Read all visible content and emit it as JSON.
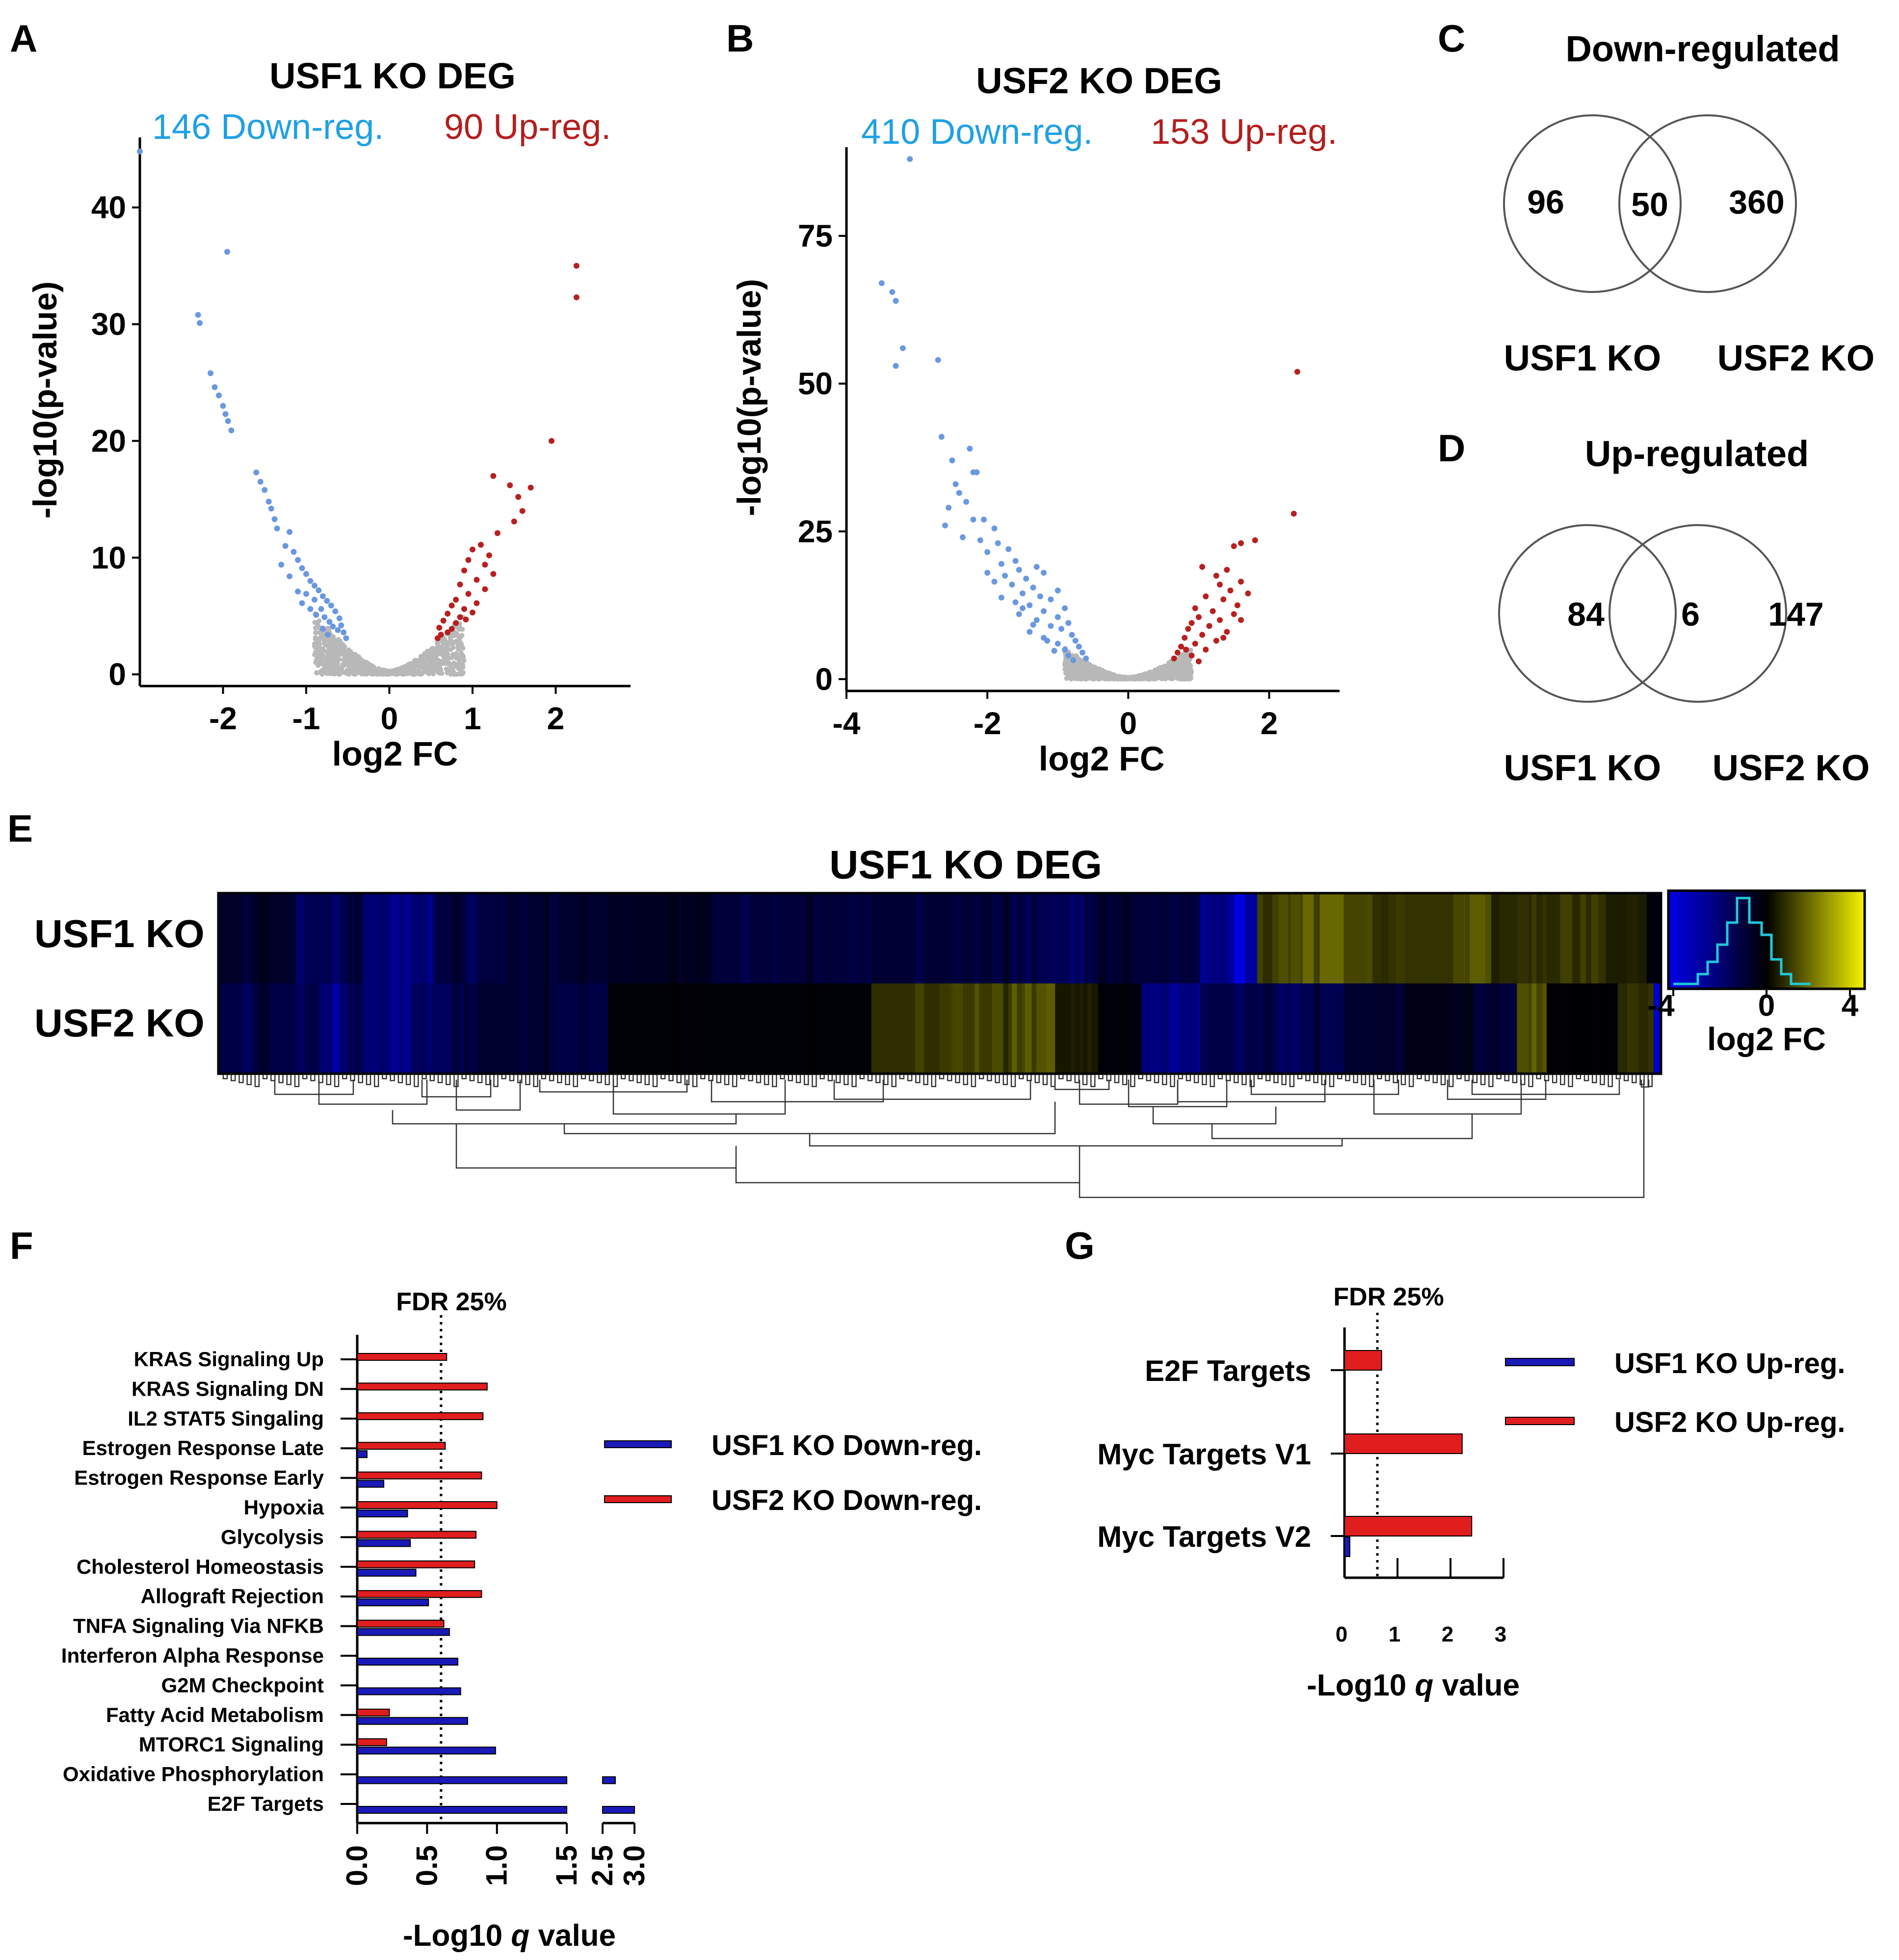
{
  "colors": {
    "down": "#1ea0e6",
    "up": "#b41e1e",
    "down_point": "#6a98e0",
    "up_point": "#b82020",
    "ns_point": "#b8b8b8",
    "usf1_bar": "#1a1ab8",
    "usf2_bar": "#e01e1e",
    "heat_low": "#0000e0",
    "heat_mid": "#000000",
    "heat_high": "#f0f000"
  },
  "panels": {
    "A": {
      "letter": "A",
      "title": "USF1 KO DEG",
      "down_label": "146 Down-reg.",
      "up_label": "90 Up-reg."
    },
    "B": {
      "letter": "B",
      "title": "USF2 KO DEG",
      "down_label": "410 Down-reg.",
      "up_label": "153 Up-reg."
    },
    "C": {
      "letter": "C",
      "title": "Down-regulated",
      "left_only": "96",
      "overlap": "50",
      "right_only": "360",
      "left_label": "USF1 KO",
      "right_label": "USF2 KO"
    },
    "D": {
      "letter": "D",
      "title": "Up-regulated",
      "left_only": "84",
      "overlap": "6",
      "right_only": "147",
      "left_label": "USF1 KO",
      "right_label": "USF2 KO"
    },
    "E": {
      "letter": "E",
      "title": "USF1 KO DEG",
      "rows": [
        "USF1 KO",
        "USF2 KO"
      ],
      "colorbar_label": "log2 FC",
      "colorbar_ticks": [
        "-4",
        "0",
        "4"
      ]
    },
    "F": {
      "letter": "F",
      "fdr_label": "FDR 25%"
    },
    "G": {
      "letter": "G",
      "fdr_label": "FDR 25%"
    }
  },
  "chart_data": [
    {
      "id": "A",
      "type": "scatter",
      "title": "USF1 KO DEG",
      "xlabel": "log2 FC",
      "ylabel": "-log10(p-value)",
      "xlim": [
        -3,
        2.9
      ],
      "ylim": [
        -1,
        46
      ],
      "xticks": [
        -2,
        -1,
        0,
        1,
        2
      ],
      "yticks": [
        0,
        10,
        20,
        30,
        40
      ],
      "series": [
        {
          "name": "146 Down-reg.",
          "points": [
            [
              -3.0,
              44.8
            ],
            [
              -1.95,
              36.2
            ],
            [
              -2.3,
              30.8
            ],
            [
              -2.28,
              30.1
            ],
            [
              -2.15,
              25.8
            ],
            [
              -2.1,
              24.6
            ],
            [
              -2.05,
              23.9
            ],
            [
              -2.0,
              23.0
            ],
            [
              -1.97,
              22.3
            ],
            [
              -1.94,
              21.7
            ],
            [
              -1.9,
              20.9
            ],
            [
              -1.6,
              17.3
            ],
            [
              -1.55,
              16.5
            ],
            [
              -1.5,
              15.8
            ],
            [
              -1.45,
              14.8
            ],
            [
              -1.42,
              14.2
            ],
            [
              -1.38,
              13.3
            ],
            [
              -1.35,
              12.5
            ],
            [
              -1.2,
              12.2
            ],
            [
              -1.25,
              11.0
            ],
            [
              -1.15,
              10.5
            ],
            [
              -1.1,
              9.8
            ],
            [
              -1.05,
              9.1
            ],
            [
              -1.0,
              8.6
            ],
            [
              -0.95,
              8.0
            ],
            [
              -0.9,
              7.6
            ],
            [
              -0.85,
              7.2
            ],
            [
              -0.8,
              6.7
            ],
            [
              -0.75,
              6.3
            ],
            [
              -0.7,
              5.9
            ],
            [
              -0.65,
              5.4
            ],
            [
              -0.6,
              4.8
            ],
            [
              -0.58,
              4.2
            ],
            [
              -0.55,
              3.6
            ],
            [
              -0.52,
              3.1
            ],
            [
              -1.1,
              7.1
            ],
            [
              -1.0,
              6.9
            ],
            [
              -0.9,
              6.4
            ],
            [
              -0.82,
              5.6
            ],
            [
              -0.78,
              4.9
            ],
            [
              -0.72,
              4.5
            ],
            [
              -0.68,
              4.1
            ],
            [
              -0.62,
              3.8
            ],
            [
              -1.3,
              9.4
            ],
            [
              -1.2,
              8.4
            ],
            [
              -0.95,
              5.6
            ],
            [
              -0.88,
              5.1
            ],
            [
              -0.8,
              3.9
            ],
            [
              -1.05,
              6.1
            ],
            [
              -0.74,
              3.4
            ]
          ]
        },
        {
          "name": "90 Up-reg.",
          "points": [
            [
              2.25,
              35.0
            ],
            [
              2.25,
              32.3
            ],
            [
              1.95,
              20.0
            ],
            [
              1.25,
              17.0
            ],
            [
              1.45,
              16.2
            ],
            [
              1.7,
              16.0
            ],
            [
              1.55,
              15.2
            ],
            [
              1.6,
              14.0
            ],
            [
              1.5,
              13.1
            ],
            [
              1.3,
              12.1
            ],
            [
              1.1,
              11.1
            ],
            [
              1.0,
              10.7
            ],
            [
              1.2,
              10.2
            ],
            [
              0.95,
              9.8
            ],
            [
              1.15,
              9.4
            ],
            [
              0.9,
              8.9
            ],
            [
              1.05,
              8.1
            ],
            [
              0.85,
              7.7
            ],
            [
              1.25,
              8.6
            ],
            [
              1.15,
              7.3
            ],
            [
              0.95,
              6.9
            ],
            [
              0.8,
              6.4
            ],
            [
              1.05,
              6.1
            ],
            [
              0.75,
              5.9
            ],
            [
              0.9,
              5.6
            ],
            [
              0.7,
              5.2
            ],
            [
              0.85,
              4.9
            ],
            [
              0.65,
              4.6
            ],
            [
              0.8,
              4.4
            ],
            [
              0.6,
              4.0
            ],
            [
              0.75,
              3.9
            ],
            [
              0.62,
              3.4
            ],
            [
              1.0,
              5.3
            ],
            [
              0.92,
              4.7
            ],
            [
              0.7,
              3.6
            ],
            [
              0.58,
              3.1
            ]
          ]
        }
      ]
    },
    {
      "id": "B",
      "type": "scatter",
      "title": "USF2 KO DEG",
      "xlabel": "log2 FC",
      "ylabel": "-log10(p-value)",
      "xlim": [
        -4,
        3
      ],
      "ylim": [
        -2,
        90
      ],
      "xticks": [
        -4,
        -2,
        0,
        2
      ],
      "yticks": [
        0,
        25,
        50,
        75
      ],
      "series": [
        {
          "name": "410 Down-reg.",
          "points": [
            [
              -3.1,
              88.0
            ],
            [
              -3.5,
              67.0
            ],
            [
              -3.35,
              65.5
            ],
            [
              -3.3,
              64.0
            ],
            [
              -3.2,
              56.0
            ],
            [
              -2.7,
              54.0
            ],
            [
              -3.3,
              53.0
            ],
            [
              -2.65,
              41.0
            ],
            [
              -2.5,
              37.0
            ],
            [
              -2.45,
              33.0
            ],
            [
              -2.4,
              31.5
            ],
            [
              -2.25,
              39.0
            ],
            [
              -2.2,
              35.0
            ],
            [
              -2.15,
              35.0
            ],
            [
              -2.55,
              29.0
            ],
            [
              -2.6,
              26.0
            ],
            [
              -2.3,
              30.0
            ],
            [
              -2.2,
              27.0
            ],
            [
              -2.05,
              27.0
            ],
            [
              -1.9,
              25.5
            ],
            [
              -2.35,
              24.0
            ],
            [
              -2.1,
              23.5
            ],
            [
              -1.85,
              23.0
            ],
            [
              -2.0,
              21.5
            ],
            [
              -1.7,
              22.0
            ],
            [
              -1.6,
              20.0
            ],
            [
              -1.8,
              19.5
            ],
            [
              -1.55,
              18.5
            ],
            [
              -1.3,
              19.0
            ],
            [
              -1.2,
              18.0
            ],
            [
              -1.75,
              17.5
            ],
            [
              -1.45,
              17.0
            ],
            [
              -1.9,
              16.5
            ],
            [
              -1.65,
              16.0
            ],
            [
              -1.35,
              15.5
            ],
            [
              -1.0,
              15.0
            ],
            [
              -1.5,
              14.5
            ],
            [
              -1.25,
              14.0
            ],
            [
              -1.8,
              13.8
            ],
            [
              -1.1,
              13.5
            ],
            [
              -1.6,
              13.0
            ],
            [
              -1.4,
              12.5
            ],
            [
              -0.9,
              12.0
            ],
            [
              -1.2,
              11.5
            ],
            [
              -1.55,
              11.0
            ],
            [
              -1.0,
              10.5
            ],
            [
              -1.3,
              10.0
            ],
            [
              -0.85,
              9.5
            ],
            [
              -1.1,
              9.0
            ],
            [
              -0.95,
              8.5
            ],
            [
              -1.4,
              8.0
            ],
            [
              -0.8,
              7.5
            ],
            [
              -1.2,
              7.0
            ],
            [
              -0.75,
              6.5
            ],
            [
              -1.0,
              6.0
            ],
            [
              -0.7,
              5.5
            ],
            [
              -0.9,
              5.0
            ],
            [
              -0.65,
              4.5
            ],
            [
              -0.85,
              4.0
            ],
            [
              -0.6,
              3.5
            ],
            [
              -1.05,
              4.8
            ],
            [
              -1.15,
              6.5
            ],
            [
              -0.78,
              3.2
            ],
            [
              -1.35,
              9.2
            ],
            [
              -1.5,
              12.0
            ],
            [
              -2.0,
              18.0
            ]
          ]
        },
        {
          "name": "153 Up-reg.",
          "points": [
            [
              2.4,
              52.0
            ],
            [
              2.35,
              28.0
            ],
            [
              1.8,
              23.5
            ],
            [
              1.6,
              23.0
            ],
            [
              1.5,
              22.5
            ],
            [
              1.05,
              19.0
            ],
            [
              1.4,
              18.5
            ],
            [
              1.25,
              17.5
            ],
            [
              1.6,
              16.5
            ],
            [
              1.3,
              16.0
            ],
            [
              1.45,
              15.0
            ],
            [
              1.7,
              14.5
            ],
            [
              1.1,
              14.0
            ],
            [
              1.35,
              13.5
            ],
            [
              1.55,
              12.5
            ],
            [
              0.95,
              12.0
            ],
            [
              1.2,
              11.5
            ],
            [
              1.5,
              11.0
            ],
            [
              1.0,
              10.5
            ],
            [
              1.3,
              10.0
            ],
            [
              0.9,
              9.5
            ],
            [
              1.15,
              9.0
            ],
            [
              0.85,
              8.5
            ],
            [
              1.4,
              8.0
            ],
            [
              1.05,
              7.5
            ],
            [
              0.8,
              7.0
            ],
            [
              1.25,
              6.5
            ],
            [
              0.95,
              6.0
            ],
            [
              0.75,
              5.5
            ],
            [
              1.1,
              5.0
            ],
            [
              0.7,
              4.5
            ],
            [
              0.9,
              4.0
            ],
            [
              0.65,
              3.5
            ],
            [
              1.0,
              3.0
            ],
            [
              1.6,
              10.0
            ],
            [
              1.35,
              7.0
            ],
            [
              0.82,
              5.0
            ]
          ]
        }
      ]
    },
    {
      "id": "F",
      "type": "bar",
      "xlabel": "-Log10 q value",
      "xlabel_parts": [
        "-Log10 ",
        "q",
        " value"
      ],
      "xticks": [
        "0.0",
        "0.5",
        "1.0",
        "1.5",
        "2.5",
        "3.0"
      ],
      "axis_break": [
        1.5,
        2.5
      ],
      "fdr_threshold": 0.6,
      "categories": [
        "KRAS Signaling Up",
        "KRAS Signaling DN",
        "IL2 STAT5 Singaling",
        "Estrogen Response Late",
        "Estrogen Response Early",
        "Hypoxia",
        "Glycolysis",
        "Cholesterol Homeostasis",
        "Allograft Rejection",
        "TNFA Signaling Via NFKB",
        "Interferon Alpha Response",
        "G2M Checkpoint",
        "Fatty Acid Metabolism",
        "MTORC1 Signaling",
        "Oxidative Phosphorylation",
        "E2F Targets"
      ],
      "series": [
        {
          "name": "USF2 KO Down-reg.",
          "values": [
            0.64,
            0.93,
            0.9,
            0.63,
            0.89,
            1.0,
            0.85,
            0.84,
            0.89,
            0.62,
            null,
            null,
            0.23,
            0.21,
            null,
            null
          ]
        },
        {
          "name": "USF1 KO Down-reg.",
          "values": [
            null,
            null,
            null,
            0.07,
            0.19,
            0.36,
            0.38,
            0.42,
            0.51,
            0.66,
            0.72,
            0.74,
            0.79,
            0.99,
            2.7,
            3.0
          ]
        }
      ]
    },
    {
      "id": "G",
      "type": "bar",
      "xlabel": "-Log10 q value",
      "xlabel_parts": [
        "-Log10 ",
        "q",
        " value"
      ],
      "xlim": [
        0,
        3
      ],
      "xticks": [
        "0",
        "1",
        "2",
        "3"
      ],
      "fdr_threshold": 0.62,
      "categories": [
        "E2F Targets",
        "Myc Targets V1",
        "Myc Targets V2"
      ],
      "series": [
        {
          "name": "USF2 KO Up-reg.",
          "values": [
            0.7,
            2.22,
            2.4
          ]
        },
        {
          "name": "USF1 KO Up-reg.",
          "values": [
            null,
            null,
            0.1
          ]
        }
      ]
    }
  ]
}
